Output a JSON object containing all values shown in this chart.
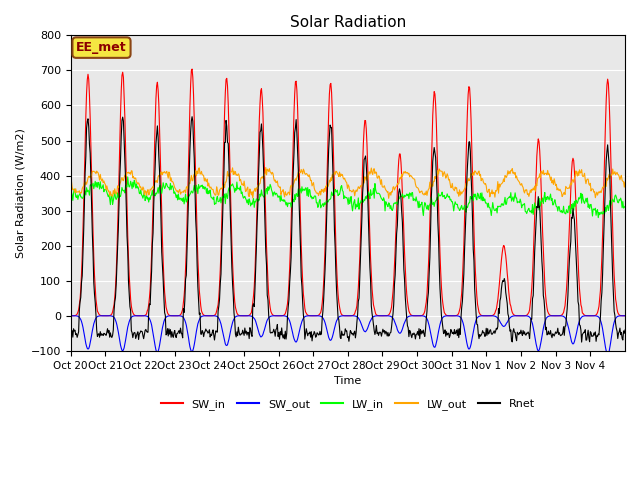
{
  "title": "Solar Radiation",
  "ylabel": "Solar Radiation (W/m2)",
  "xlabel": "Time",
  "ylim": [
    -100,
    800
  ],
  "yticks": [
    -100,
    0,
    100,
    200,
    300,
    400,
    500,
    600,
    700,
    800
  ],
  "xtick_labels": [
    "Oct 20",
    "Oct 21",
    "Oct 22",
    "Oct 23",
    "Oct 24",
    "Oct 25",
    "Oct 26",
    "Oct 27",
    "Oct 28",
    "Oct 29",
    "Oct 30",
    "Oct 31",
    "Nov 1",
    "Nov 2",
    "Nov 3",
    "Nov 4"
  ],
  "annotation_text": "EE_met",
  "annotation_box_color": "#f5e642",
  "annotation_box_edgecolor": "#8B4513",
  "colors": {
    "SW_in": "#ff0000",
    "SW_out": "#0000ff",
    "LW_in": "#00ff00",
    "LW_out": "#ffa500",
    "Rnet": "#000000"
  },
  "legend_labels": [
    "SW_in",
    "SW_out",
    "LW_in",
    "LW_out",
    "Rnet"
  ],
  "n_days": 16,
  "background_color": "#e8e8e8",
  "grid_color": "#ffffff"
}
